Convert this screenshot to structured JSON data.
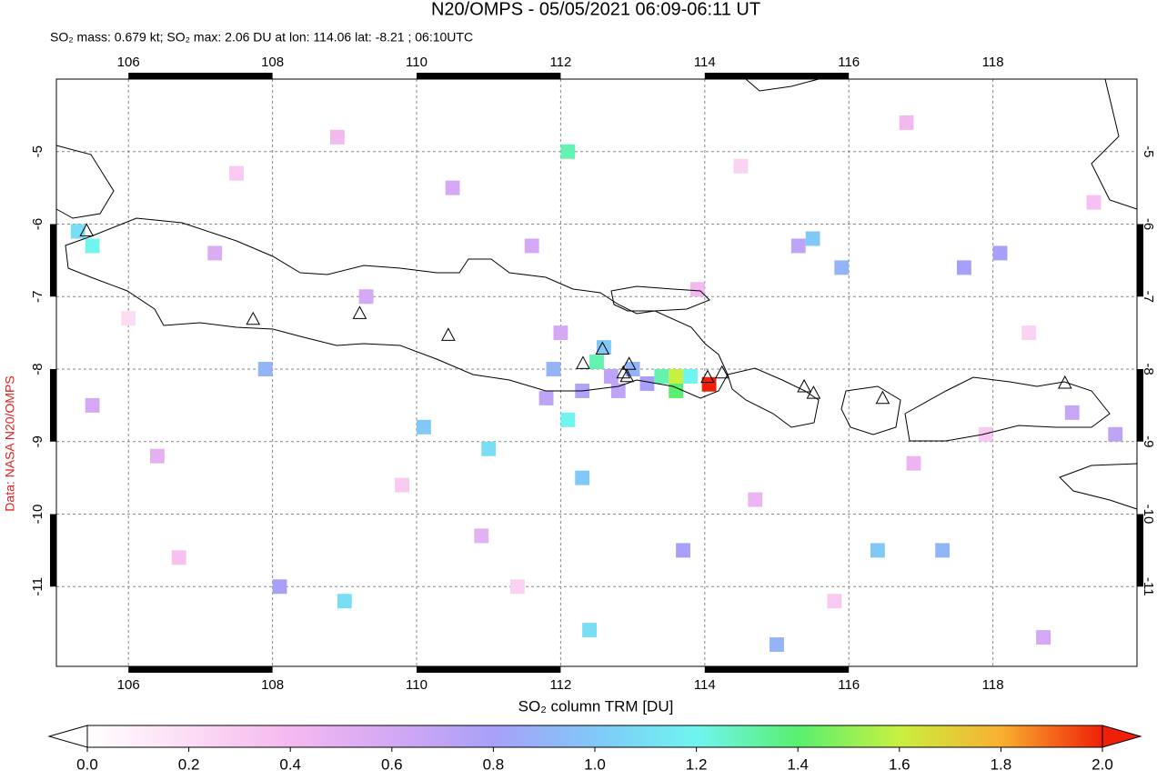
{
  "chart_data": {
    "type": "map",
    "title": "N20/OMPS - 05/05/2021 06:09-06:11 UT",
    "subtitle": "SO₂ mass: 0.679 kt; SO₂ max: 2.06 DU at lon: 114.06 lat: -8.21 ; 06:10UTC",
    "credit": "Data: NASA N20/OMPS",
    "xlim": [
      105,
      120
    ],
    "ylim": [
      -12.1,
      -4
    ],
    "xticks": [
      106,
      108,
      110,
      112,
      114,
      116,
      118
    ],
    "yticks": [
      -5,
      -6,
      -7,
      -8,
      -9,
      -10,
      -11
    ],
    "grid": true,
    "pixels": {
      "lon": [
        105.3,
        105.5,
        112.1,
        113.6,
        114.06,
        113.4,
        113.6,
        113.8,
        112.5,
        112.6,
        112.8,
        112.3,
        111.9,
        111.8,
        112.1,
        110.1,
        111.0,
        112.3,
        115.5,
        115.3,
        115.9,
        117.6,
        118.1,
        117.3,
        116.4,
        115.0,
        113.7,
        108.1,
        109.0,
        107.9,
        112.4,
        105.5,
        113.2,
        113.0,
        112.7,
        112.0,
        111.6,
        110.5,
        107.2,
        109.3,
        119.7,
        119.1,
        118.7,
        106.4,
        110.9,
        114.7,
        116.9,
        108.9,
        116.8,
        113.9,
        106.7,
        119.4,
        117.9,
        109.8,
        107.5,
        115.8,
        111.4,
        114.5,
        118.5,
        106.0
      ],
      "lat": [
        -6.1,
        -6.3,
        -5.0,
        -8.1,
        -8.21,
        -8.1,
        -8.3,
        -8.1,
        -7.9,
        -7.7,
        -8.3,
        -8.3,
        -8.0,
        -8.4,
        -8.7,
        -8.8,
        -9.1,
        -9.5,
        -6.2,
        -6.3,
        -6.6,
        -6.6,
        -6.4,
        -10.5,
        -10.5,
        -11.8,
        -10.5,
        -11.0,
        -11.2,
        -8.0,
        -11.6,
        -8.5,
        -8.2,
        -8.0,
        -8.1,
        -7.5,
        -6.3,
        -5.5,
        -6.4,
        -7.0,
        -8.9,
        -8.6,
        -11.7,
        -9.2,
        -10.3,
        -9.8,
        -9.3,
        -4.8,
        -4.6,
        -6.9,
        -10.6,
        -5.7,
        -8.9,
        -9.6,
        -5.3,
        -11.2,
        -11.0,
        -5.2,
        -7.5,
        -7.3
      ],
      "values": [
        1.1,
        1.2,
        1.3,
        1.6,
        2.06,
        1.3,
        1.4,
        1.2,
        1.3,
        1.0,
        0.7,
        0.75,
        0.9,
        0.7,
        1.2,
        1.0,
        1.1,
        1.0,
        1.0,
        0.7,
        0.9,
        0.8,
        0.8,
        0.9,
        1.0,
        0.9,
        0.8,
        0.8,
        1.1,
        0.9,
        1.1,
        0.6,
        0.8,
        0.9,
        0.7,
        0.6,
        0.6,
        0.6,
        0.55,
        0.6,
        0.7,
        0.65,
        0.6,
        0.5,
        0.5,
        0.45,
        0.45,
        0.4,
        0.4,
        0.4,
        0.35,
        0.35,
        0.3,
        0.3,
        0.3,
        0.3,
        0.25,
        0.25,
        0.25,
        0.2
      ]
    },
    "volcanoes": {
      "lon": [
        105.42,
        107.73,
        109.21,
        110.44,
        112.31,
        112.58,
        112.92,
        112.95,
        112.87,
        114.04,
        114.24,
        115.38,
        115.51,
        116.47,
        119.0
      ],
      "lat": [
        -6.1,
        -7.32,
        -7.24,
        -7.54,
        -7.93,
        -7.73,
        -8.11,
        -7.94,
        -8.06,
        -8.12,
        -8.06,
        -8.25,
        -8.34,
        -8.41,
        -8.2
      ]
    },
    "xlabel": "SO₂ column TRM [DU]",
    "colorbar": {
      "lim": [
        0,
        2
      ],
      "ticks": [
        {
          "value": 0,
          "label": "0.0"
        },
        {
          "value": 0.2,
          "label": "0.2"
        },
        {
          "value": 0.4,
          "label": "0.4"
        },
        {
          "value": 0.6,
          "label": "0.6"
        },
        {
          "value": 0.8,
          "label": "0.8"
        },
        {
          "value": 1,
          "label": "1.0"
        },
        {
          "value": 1.2,
          "label": "1.2"
        },
        {
          "value": 1.4,
          "label": "1.4"
        },
        {
          "value": 1.6,
          "label": "1.6"
        },
        {
          "value": 1.8,
          "label": "1.8"
        },
        {
          "value": 2,
          "label": "2.0"
        }
      ],
      "colors": [
        "#ffffff",
        "#fcdcf4",
        "#f4b8f0",
        "#d4a8f4",
        "#a8a0f8",
        "#80c8f8",
        "#70f4f0",
        "#58f070",
        "#c8f040",
        "#f8b030",
        "#f02008"
      ]
    }
  }
}
